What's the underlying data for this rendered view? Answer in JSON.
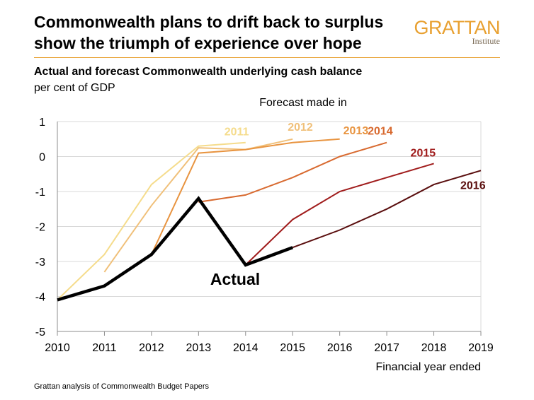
{
  "header": {
    "title_line1": "Commonwealth plans to drift back to surplus",
    "title_line2": "show the triumph of experience over hope",
    "logo_word": "GRATTAN",
    "logo_sub": "Institute"
  },
  "colors": {
    "logo": "#e8a030",
    "rule": "#e8a030",
    "actual": "#000000"
  },
  "chart_data": {
    "type": "line",
    "title": "Actual and forecast Commonwealth underlying cash balance",
    "ylabel": "per cent of GDP",
    "xlabel": "Financial year ended",
    "legend_title": "Forecast made in",
    "annotation": "Actual",
    "x_ticks": [
      2010,
      2011,
      2012,
      2013,
      2014,
      2015,
      2016,
      2017,
      2018,
      2019
    ],
    "y_ticks": [
      1,
      0,
      -1,
      -2,
      -3,
      -4,
      -5
    ],
    "xlim": [
      2010,
      2019
    ],
    "ylim": [
      -5,
      1
    ],
    "grid": "horizontal",
    "series": [
      {
        "name": "2011",
        "color": "#f5dc8c",
        "points": [
          [
            2010,
            -4.1
          ],
          [
            2011,
            -2.8
          ],
          [
            2012,
            -0.8
          ],
          [
            2013,
            0.3
          ],
          [
            2014,
            0.4
          ]
        ]
      },
      {
        "name": "2012",
        "color": "#f0c07a",
        "points": [
          [
            2011,
            -3.3
          ],
          [
            2012,
            -1.4
          ],
          [
            2013,
            0.25
          ],
          [
            2014,
            0.2
          ],
          [
            2015,
            0.5
          ]
        ]
      },
      {
        "name": "2013",
        "color": "#e89440",
        "points": [
          [
            2012,
            -2.8
          ],
          [
            2013,
            0.1
          ],
          [
            2014,
            0.2
          ],
          [
            2015,
            0.4
          ],
          [
            2016,
            0.5
          ]
        ]
      },
      {
        "name": "2014",
        "color": "#d86a30",
        "points": [
          [
            2013,
            -1.3
          ],
          [
            2014,
            -1.1
          ],
          [
            2015,
            -0.6
          ],
          [
            2016,
            0.0
          ],
          [
            2017,
            0.4
          ]
        ]
      },
      {
        "name": "2015",
        "color": "#a01c1c",
        "points": [
          [
            2014,
            -3.1
          ],
          [
            2015,
            -1.8
          ],
          [
            2016,
            -1.0
          ],
          [
            2017,
            -0.6
          ],
          [
            2018,
            -0.2
          ]
        ]
      },
      {
        "name": "2016",
        "color": "#5a0e0e",
        "points": [
          [
            2015,
            -2.6
          ],
          [
            2016,
            -2.1
          ],
          [
            2017,
            -1.5
          ],
          [
            2018,
            -0.8
          ],
          [
            2019,
            -0.4
          ]
        ]
      },
      {
        "name": "Actual",
        "color": "#000000",
        "points": [
          [
            2010,
            -4.1
          ],
          [
            2011,
            -3.7
          ],
          [
            2012,
            -2.8
          ],
          [
            2013,
            -1.2
          ],
          [
            2014,
            -3.1
          ],
          [
            2015,
            -2.6
          ]
        ]
      }
    ]
  },
  "footer": {
    "source": "Grattan analysis of Commonwealth Budget Papers"
  }
}
